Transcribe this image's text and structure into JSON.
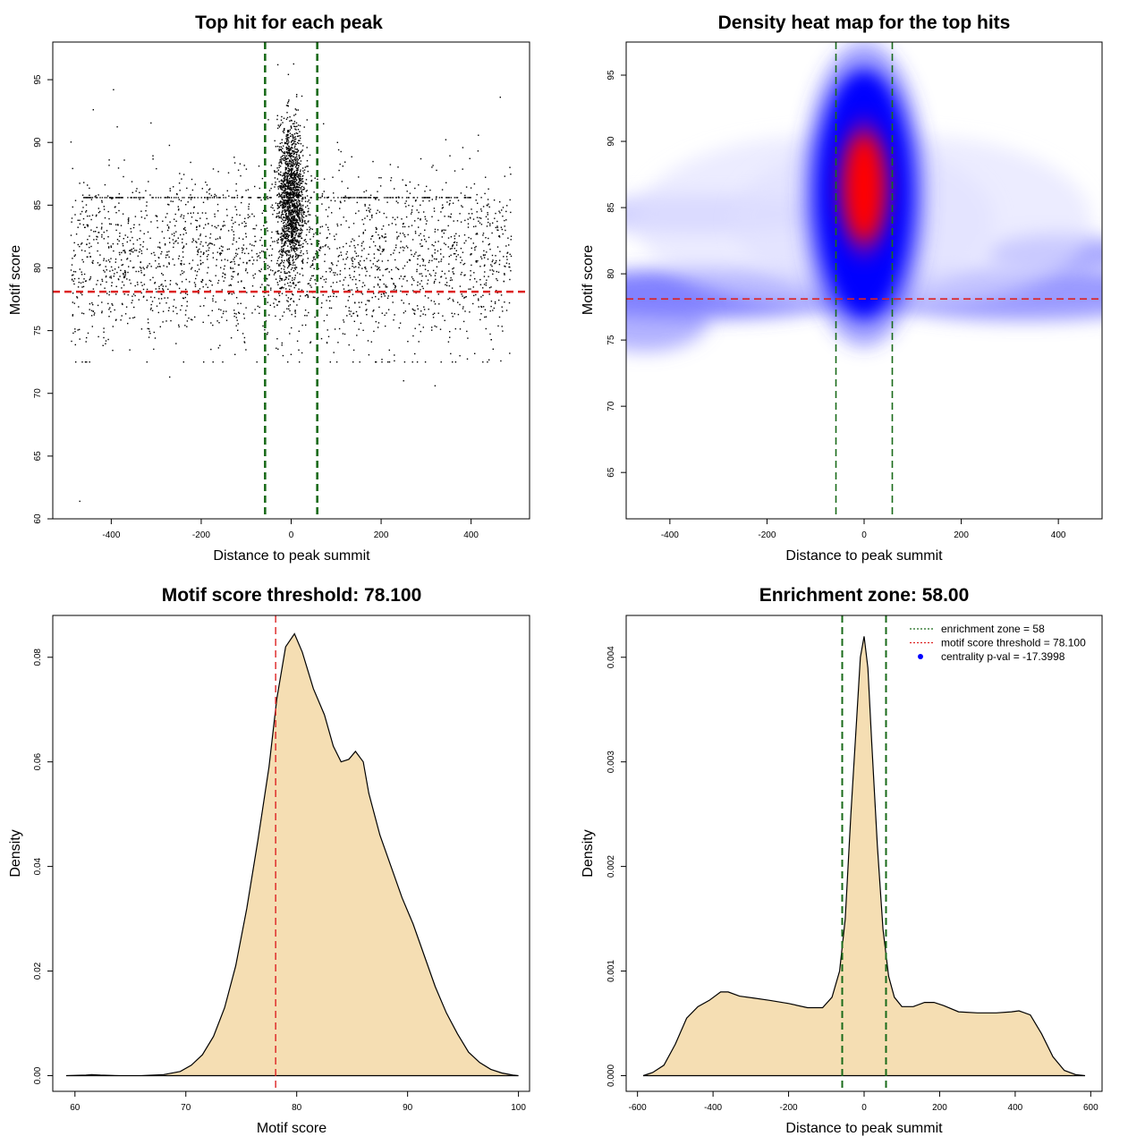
{
  "chart_data": [
    {
      "type": "scatter",
      "title": "Top hit for each peak",
      "xlabel": "Distance to peak summit",
      "ylabel": "Motif score",
      "xlim": [
        -530,
        530
      ],
      "ylim": [
        60,
        98
      ],
      "xticks": [
        -400,
        -200,
        0,
        200,
        400
      ],
      "yticks": [
        60,
        65,
        70,
        75,
        80,
        85,
        90,
        95
      ],
      "point_count_approx": 4200,
      "background_spread": {
        "x_range": [
          -490,
          490
        ],
        "y_mean": 80.5,
        "y_sd": 3.5
      },
      "central_cluster": {
        "x_center": 0,
        "x_sd": 15,
        "y_mean": 85.5,
        "y_sd": 3.0,
        "y_max": 97.3
      },
      "horizontal_streak_score": 85.6,
      "outliers": [
        {
          "x": -470,
          "y": 61.4
        },
        {
          "x": -395,
          "y": 94.2
        },
        {
          "x": -440,
          "y": 92.6
        },
        {
          "x": 465,
          "y": 93.6
        },
        {
          "x": 320,
          "y": 70.6
        },
        {
          "x": -270,
          "y": 71.3
        },
        {
          "x": 250,
          "y": 71.0
        }
      ],
      "h_lines": [
        {
          "y": 78.1,
          "color": "#dd2222",
          "style": "dashed"
        }
      ],
      "v_lines": [
        {
          "x": -58,
          "color": "#1a6b1a",
          "style": "dashed"
        },
        {
          "x": 58,
          "color": "#1a6b1a",
          "style": "dashed"
        }
      ]
    },
    {
      "type": "heatmap",
      "title": "Density heat map for the top hits",
      "xlabel": "Distance to peak summit",
      "ylabel": "Motif score",
      "xlim": [
        -490,
        490
      ],
      "ylim": [
        61.5,
        97.5
      ],
      "xticks": [
        -400,
        -200,
        0,
        200,
        400
      ],
      "yticks": [
        65,
        70,
        75,
        80,
        85,
        90,
        95
      ],
      "color_scale": [
        "#ffffff",
        "#0000ff",
        "#ff0000"
      ],
      "peak": {
        "x": 0,
        "y": 86.5
      },
      "h_lines": [
        {
          "y": 78.1,
          "color": "#dd2222",
          "style": "dashed"
        }
      ],
      "v_lines": [
        {
          "x": -58,
          "color": "#1a6b1a",
          "style": "dashed"
        },
        {
          "x": 58,
          "color": "#1a6b1a",
          "style": "dashed"
        }
      ]
    },
    {
      "type": "area",
      "title": "Motif score threshold: 78.100",
      "xlabel": "Motif score",
      "ylabel": "Density",
      "xlim": [
        58,
        101
      ],
      "ylim": [
        -0.003,
        0.088
      ],
      "xticks": [
        60,
        70,
        80,
        90,
        100
      ],
      "yticks": [
        0.0,
        0.02,
        0.04,
        0.06,
        0.08
      ],
      "ytick_labels": [
        "0.00",
        "0.02",
        "0.04",
        "0.06",
        "0.08"
      ],
      "fill": "#f5deb3",
      "x": [
        59.2,
        61,
        61.5,
        62.3,
        64,
        66,
        68,
        69.5,
        70.5,
        71.5,
        72.5,
        73.5,
        74.5,
        75.5,
        76.5,
        77.5,
        78.2,
        79,
        79.8,
        80.5,
        81.5,
        82.5,
        83.3,
        84,
        84.7,
        85.3,
        86,
        86.5,
        87.5,
        88.5,
        89.5,
        90.5,
        91.5,
        92.5,
        93.5,
        94.5,
        95.5,
        96.5,
        97.5,
        98.5,
        99.5,
        100
      ],
      "y": [
        0.0,
        0.0001,
        0.0002,
        0.0001,
        0.0,
        0.0,
        0.0002,
        0.0008,
        0.002,
        0.004,
        0.0075,
        0.013,
        0.021,
        0.032,
        0.045,
        0.059,
        0.072,
        0.082,
        0.0845,
        0.081,
        0.074,
        0.069,
        0.063,
        0.06,
        0.0605,
        0.062,
        0.06,
        0.054,
        0.046,
        0.04,
        0.034,
        0.029,
        0.023,
        0.017,
        0.012,
        0.008,
        0.0045,
        0.0025,
        0.0012,
        0.0005,
        0.0001,
        0.0
      ],
      "v_lines": [
        {
          "x": 78.1,
          "color": "#dd2222",
          "style": "dashed"
        }
      ]
    },
    {
      "type": "area",
      "title": "Enrichment zone: 58.00",
      "xlabel": "Distance to peak summit",
      "ylabel": "Density",
      "xlim": [
        -630,
        630
      ],
      "ylim": [
        -0.00015,
        0.0044
      ],
      "xticks": [
        -600,
        -400,
        -200,
        0,
        200,
        400,
        600
      ],
      "yticks": [
        0.0,
        0.001,
        0.002,
        0.003,
        0.004
      ],
      "ytick_labels": [
        "0.000",
        "0.001",
        "0.002",
        "0.003",
        "0.004"
      ],
      "fill": "#f5deb3",
      "x": [
        -585,
        -560,
        -530,
        -500,
        -470,
        -440,
        -410,
        -380,
        -360,
        -330,
        -290,
        -250,
        -200,
        -150,
        -110,
        -85,
        -65,
        -50,
        -35,
        -20,
        -10,
        0,
        10,
        20,
        35,
        50,
        65,
        80,
        100,
        130,
        160,
        185,
        210,
        250,
        300,
        350,
        390,
        410,
        440,
        470,
        500,
        530,
        560,
        585
      ],
      "y": [
        0.0,
        3e-05,
        0.0001,
        0.0003,
        0.00055,
        0.00066,
        0.00072,
        0.0008,
        0.0008,
        0.00076,
        0.00074,
        0.00072,
        0.00069,
        0.00065,
        0.00065,
        0.00075,
        0.001,
        0.0015,
        0.0025,
        0.0034,
        0.004,
        0.0042,
        0.0039,
        0.0032,
        0.0022,
        0.0014,
        0.00095,
        0.00075,
        0.00066,
        0.00066,
        0.0007,
        0.0007,
        0.00067,
        0.00061,
        0.0006,
        0.0006,
        0.00061,
        0.00062,
        0.00058,
        0.0004,
        0.00018,
        5e-05,
        1e-05,
        0.0
      ],
      "v_lines": [
        {
          "x": -58,
          "color": "#1a6b1a",
          "style": "dashed"
        },
        {
          "x": 58,
          "color": "#1a6b1a",
          "style": "dashed"
        }
      ],
      "legend": {
        "placement": "top-right",
        "entries": [
          {
            "label": "enrichment zone = 58",
            "color": "#1a6b1a",
            "marker": "dotted-line"
          },
          {
            "label": "motif score threshold = 78.100",
            "color": "#dd2222",
            "marker": "dotted-line"
          },
          {
            "label": "centrality p-val = -17.3998",
            "color": "#0000ff",
            "marker": "dot"
          }
        ]
      }
    }
  ]
}
